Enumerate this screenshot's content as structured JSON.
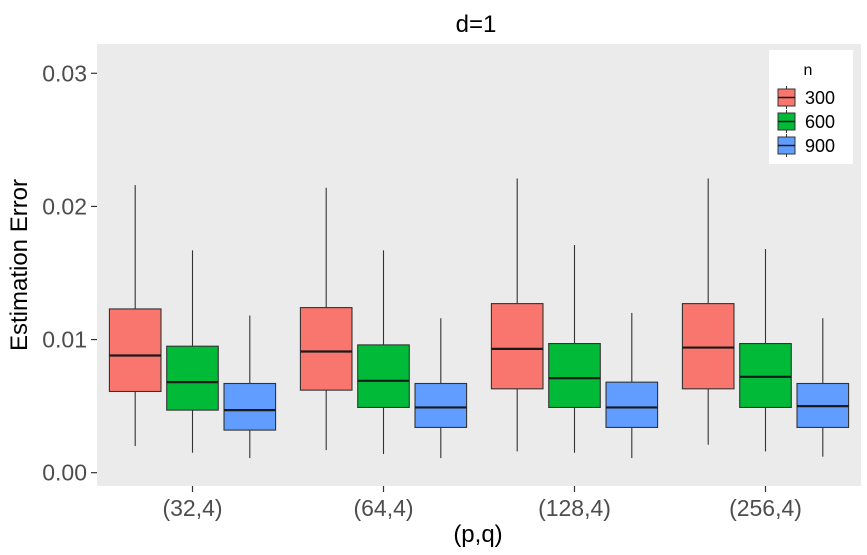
{
  "chart_data": {
    "type": "boxplot",
    "title": "d=1",
    "xlabel": "(p,q)",
    "ylabel": "Estimation Error",
    "categories": [
      "(32,4)",
      "(64,4)",
      "(128,4)",
      "(256,4)"
    ],
    "ylim": [
      -0.001,
      0.0322
    ],
    "yticks": [
      0.0,
      0.01,
      0.02,
      0.03
    ],
    "ytick_labels": [
      "0.00",
      "0.01",
      "0.02",
      "0.03"
    ],
    "grid": false,
    "legend": {
      "title": "n",
      "position": "top-right"
    },
    "series": [
      {
        "name": "300",
        "color": "#F8766D",
        "boxes": [
          {
            "min": 0.002,
            "q1": 0.0061,
            "median": 0.0088,
            "q3": 0.0123,
            "max": 0.0216
          },
          {
            "min": 0.0017,
            "q1": 0.0062,
            "median": 0.0091,
            "q3": 0.0124,
            "max": 0.0214
          },
          {
            "min": 0.0016,
            "q1": 0.0063,
            "median": 0.0093,
            "q3": 0.0127,
            "max": 0.0221
          },
          {
            "min": 0.0021,
            "q1": 0.0063,
            "median": 0.0094,
            "q3": 0.0127,
            "max": 0.0221
          }
        ]
      },
      {
        "name": "600",
        "color": "#00BA38",
        "boxes": [
          {
            "min": 0.0015,
            "q1": 0.0047,
            "median": 0.0068,
            "q3": 0.0095,
            "max": 0.0167
          },
          {
            "min": 0.0014,
            "q1": 0.0049,
            "median": 0.0069,
            "q3": 0.0096,
            "max": 0.0167
          },
          {
            "min": 0.0015,
            "q1": 0.0049,
            "median": 0.0071,
            "q3": 0.0097,
            "max": 0.0171
          },
          {
            "min": 0.0016,
            "q1": 0.0049,
            "median": 0.0072,
            "q3": 0.0097,
            "max": 0.0168
          }
        ]
      },
      {
        "name": "900",
        "color": "#619CFF",
        "boxes": [
          {
            "min": 0.0011,
            "q1": 0.0032,
            "median": 0.0047,
            "q3": 0.0067,
            "max": 0.0118
          },
          {
            "min": 0.0011,
            "q1": 0.0034,
            "median": 0.0049,
            "q3": 0.0067,
            "max": 0.0116
          },
          {
            "min": 0.0011,
            "q1": 0.0034,
            "median": 0.0049,
            "q3": 0.0068,
            "max": 0.012
          },
          {
            "min": 0.0012,
            "q1": 0.0034,
            "median": 0.005,
            "q3": 0.0067,
            "max": 0.0116
          }
        ]
      }
    ]
  },
  "colors": {
    "panel_background": "#EBEBEB",
    "box_outline": "#333333",
    "whisker": "#333333",
    "tick_text": "#4D4D4D"
  }
}
